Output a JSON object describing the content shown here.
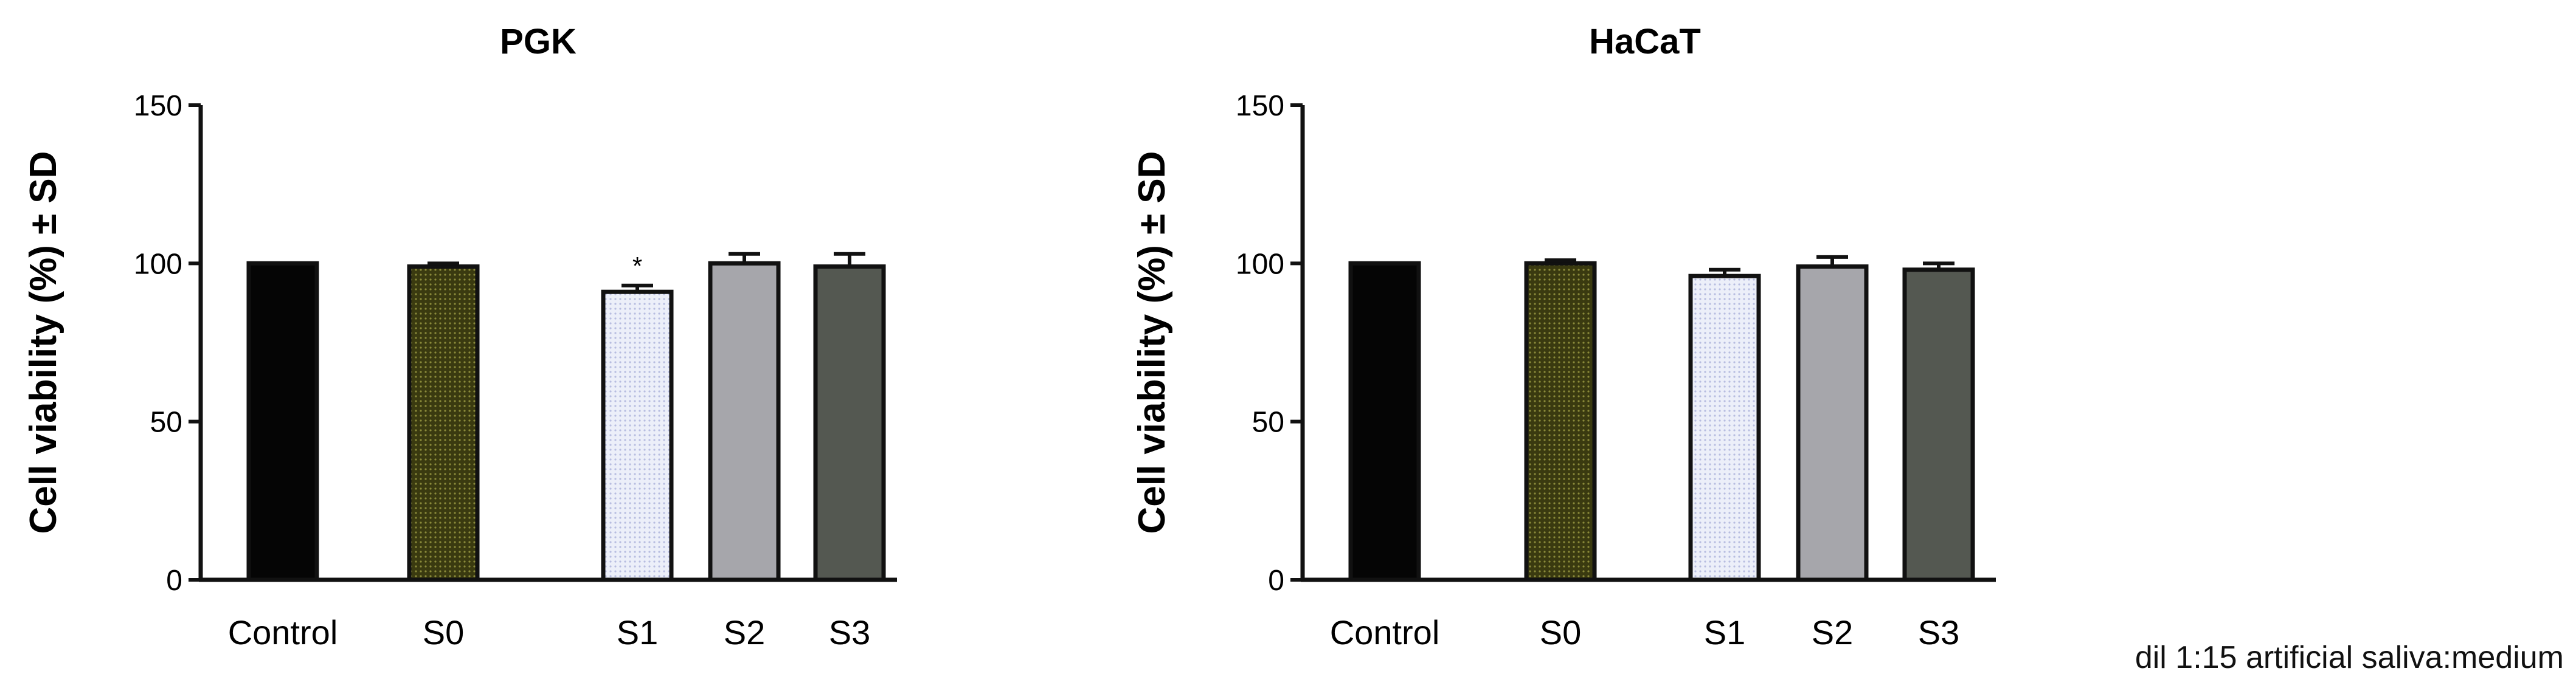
{
  "footnote": "dil 1:15 artificial saliva:medium",
  "chart_data": [
    {
      "type": "bar",
      "title": "PGK",
      "ylabel": "Cell viability (%)  ± SD",
      "xlabel": "",
      "ylim": [
        0,
        150
      ],
      "yticks": [
        0,
        50,
        100,
        150
      ],
      "categories": [
        "Control",
        "S0",
        "S1",
        "S2",
        "S3"
      ],
      "values": [
        100,
        99,
        91,
        100,
        99
      ],
      "errors": [
        0,
        1,
        2,
        3,
        4
      ],
      "annotations": [
        "",
        "",
        "*",
        "",
        ""
      ],
      "fills": [
        "black",
        "olive-dots",
        "lavender-dots",
        "gray",
        "darkgray"
      ]
    },
    {
      "type": "bar",
      "title": "HaCaT",
      "ylabel": "Cell viability (%)  ± SD",
      "xlabel": "",
      "ylim": [
        0,
        150
      ],
      "yticks": [
        0,
        50,
        100,
        150
      ],
      "categories": [
        "Control",
        "S0",
        "S1",
        "S2",
        "S3"
      ],
      "values": [
        100,
        100,
        96,
        99,
        98
      ],
      "errors": [
        0,
        1,
        2,
        3,
        2
      ],
      "annotations": [
        "",
        "",
        "",
        "",
        ""
      ],
      "fills": [
        "black",
        "olive-dots",
        "lavender-dots",
        "gray",
        "darkgray"
      ]
    }
  ]
}
